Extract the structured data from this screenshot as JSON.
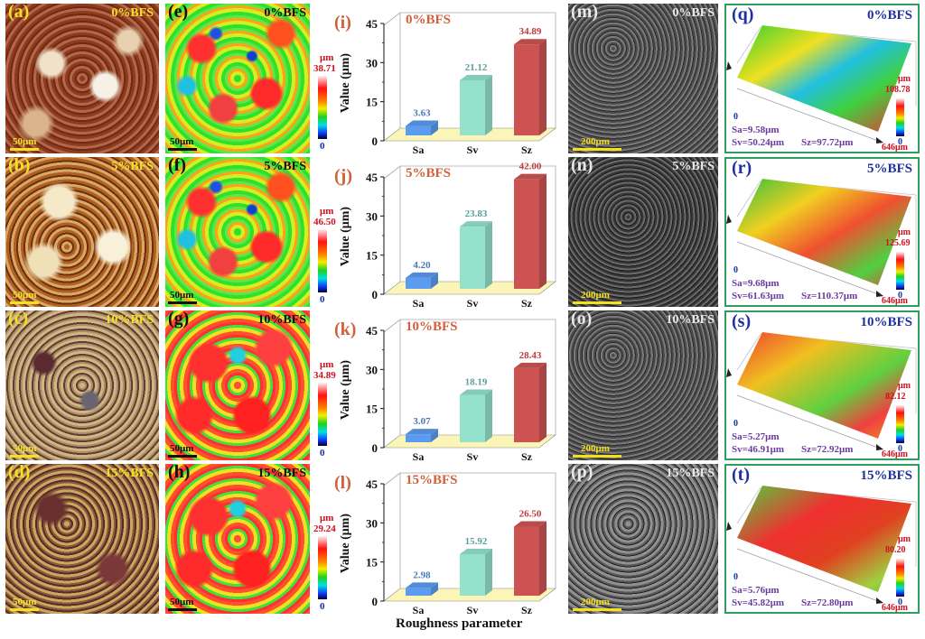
{
  "figure": {
    "rows": [
      {
        "bfs": "0%BFS",
        "photo": {
          "label": "(a)",
          "scale": "50μm"
        },
        "heightmap": {
          "label": "(e)",
          "scale": "50μm",
          "cbar_unit": "μm",
          "cbar_max": "38.71",
          "cbar_min": "0"
        },
        "bar": {
          "label": "(i)"
        },
        "sem": {
          "label": "(m)",
          "scale": "200μm"
        },
        "surface": {
          "label": "(q)",
          "cbar_unit": "μm",
          "cbar_max": "108.78",
          "cbar_min": "0",
          "axis_zero": "0",
          "axis_len": "646μm",
          "sa": "Sa=9.58μm",
          "sv": "Sv=50.24μm",
          "sz": "Sz=97.72μm"
        }
      },
      {
        "bfs": "5%BFS",
        "photo": {
          "label": "(b)",
          "scale": "50μm"
        },
        "heightmap": {
          "label": "(f)",
          "scale": "50μm",
          "cbar_unit": "μm",
          "cbar_max": "46.50",
          "cbar_min": "0"
        },
        "bar": {
          "label": "(j)"
        },
        "sem": {
          "label": "(n)",
          "scale": "200μm"
        },
        "surface": {
          "label": "(r)",
          "cbar_unit": "μm",
          "cbar_max": "125.69",
          "cbar_min": "0",
          "axis_zero": "0",
          "axis_len": "646μm",
          "sa": "Sa=9.68μm",
          "sv": "Sv=61.63μm",
          "sz": "Sz=110.37μm"
        }
      },
      {
        "bfs": "10%BFS",
        "photo": {
          "label": "(c)",
          "scale": "50μm"
        },
        "heightmap": {
          "label": "(g)",
          "scale": "50μm",
          "cbar_unit": "μm",
          "cbar_max": "34.89",
          "cbar_min": "0"
        },
        "bar": {
          "label": "(k)"
        },
        "sem": {
          "label": "(o)",
          "scale": "200μm"
        },
        "surface": {
          "label": "(s)",
          "cbar_unit": "μm",
          "cbar_max": "82.12",
          "cbar_min": "0",
          "axis_zero": "0",
          "axis_len": "646μm",
          "sa": "Sa=5.27μm",
          "sv": "Sv=46.91μm",
          "sz": "Sz=72.92μm"
        }
      },
      {
        "bfs": "15%BFS",
        "photo": {
          "label": "(d)",
          "scale": "50μm"
        },
        "heightmap": {
          "label": "(h)",
          "scale": "50μm",
          "cbar_unit": "μm",
          "cbar_max": "29.24",
          "cbar_min": "0"
        },
        "bar": {
          "label": "(l)"
        },
        "sem": {
          "label": "(p)",
          "scale": "200μm"
        },
        "surface": {
          "label": "(t)",
          "cbar_unit": "μm",
          "cbar_max": "80.20",
          "cbar_min": "0",
          "axis_zero": "0",
          "axis_len": "646μm",
          "sa": "Sa=5.76μm",
          "sv": "Sv=45.82μm",
          "sz": "Sz=72.80μm"
        }
      }
    ],
    "bar_xlabel": "Roughness parameter"
  },
  "colors": {
    "photo_label": "#f5e020",
    "heightmap_label": "#111111",
    "bar_label": "#d2603a",
    "sem_label": "#e8e8e8",
    "surface_label": "#2030a0",
    "surface_params": "#6a3aa0",
    "panel_border": "#2e9e5e",
    "bar_Sa": "#5b9cf0",
    "bar_Sv": "#94e2cc",
    "bar_Sz": "#cd5353",
    "floor": "#fbf5b8"
  },
  "chart_data": [
    {
      "type": "bar",
      "title": "0%BFS",
      "categories": [
        "Sa",
        "Sv",
        "Sz"
      ],
      "values": [
        3.63,
        21.12,
        34.89
      ],
      "xlabel": "",
      "ylabel": "Value (μm)",
      "ylim": [
        0,
        45
      ],
      "yticks": [
        0,
        15,
        30,
        45
      ]
    },
    {
      "type": "bar",
      "title": "5%BFS",
      "categories": [
        "Sa",
        "Sv",
        "Sz"
      ],
      "values": [
        4.2,
        23.83,
        42.0
      ],
      "xlabel": "",
      "ylabel": "Value (μm)",
      "ylim": [
        0,
        45
      ],
      "yticks": [
        0,
        15,
        30,
        45
      ]
    },
    {
      "type": "bar",
      "title": "10%BFS",
      "categories": [
        "Sa",
        "Sv",
        "Sz"
      ],
      "values": [
        3.07,
        18.19,
        28.43
      ],
      "xlabel": "",
      "ylabel": "Value (μm)",
      "ylim": [
        0,
        45
      ],
      "yticks": [
        0,
        15,
        30,
        45
      ]
    },
    {
      "type": "bar",
      "title": "15%BFS",
      "categories": [
        "Sa",
        "Sv",
        "Sz"
      ],
      "values": [
        2.98,
        15.92,
        26.5
      ],
      "xlabel": "Roughness parameter",
      "ylabel": "Value (μm)",
      "ylim": [
        0,
        45
      ],
      "yticks": [
        0,
        15,
        30,
        45
      ]
    }
  ]
}
